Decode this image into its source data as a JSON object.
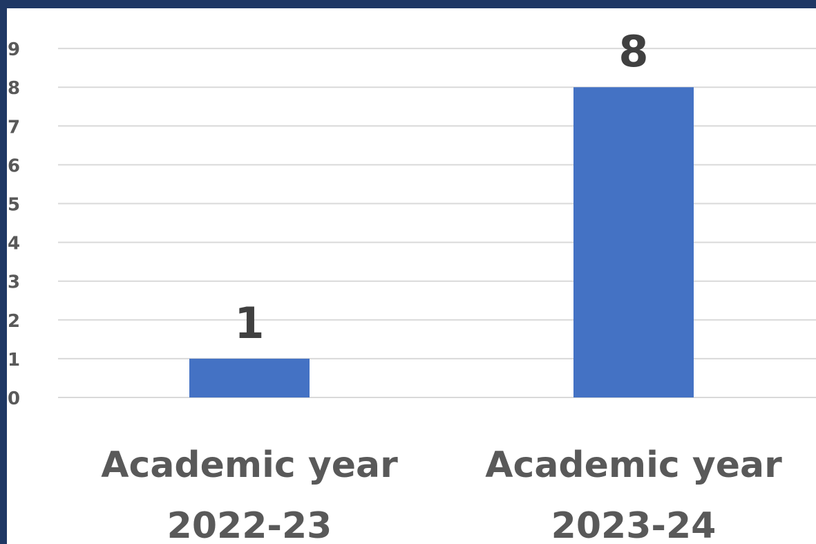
{
  "chart_data": {
    "type": "bar",
    "categories": [
      [
        "Academic year",
        "2022-23"
      ],
      [
        "Academic year",
        "2023-24"
      ]
    ],
    "values": [
      1,
      8
    ],
    "data_labels": [
      "1",
      "8"
    ],
    "y_ticks": [
      "0",
      "1",
      "2",
      "3",
      "4",
      "5",
      "6",
      "7",
      "8",
      "9"
    ],
    "ylim": [
      0,
      9
    ],
    "grid": true,
    "legend": "none",
    "title": "",
    "xlabel": "",
    "ylabel": ""
  },
  "colors": {
    "frame": "#1f3864",
    "background": "#ffffff",
    "bar": "#4472c4",
    "grid": "#d9d9d9",
    "tick_text": "#595959",
    "data_label_text": "#404040"
  }
}
